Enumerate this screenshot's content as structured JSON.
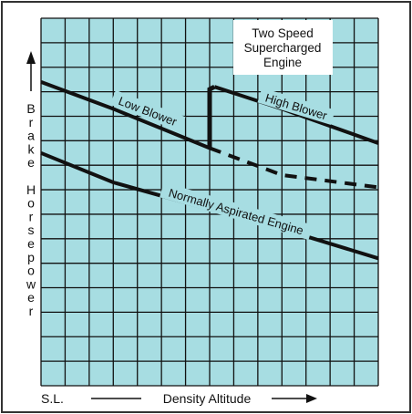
{
  "chart_data": {
    "type": "line",
    "title_lines": [
      "Two Speed",
      "Supercharged",
      "Engine"
    ],
    "xlabel": "Density Altitude",
    "x_origin_label": "S.L.",
    "ylabel_letters": [
      "B",
      "r",
      "a",
      "k",
      "e",
      "",
      "H",
      "o",
      "r",
      "s",
      "e",
      "p",
      "o",
      "w",
      "e",
      "r"
    ],
    "xlim": [
      0,
      14
    ],
    "ylim": [
      0,
      15
    ],
    "grid": true,
    "series": [
      {
        "name": "Low Blower",
        "style": "solid",
        "points": [
          [
            0,
            12.4
          ],
          [
            3,
            11.3
          ],
          [
            6,
            10.1
          ],
          [
            7,
            9.7
          ]
        ]
      },
      {
        "name": "",
        "style": "dashed",
        "points": [
          [
            7,
            9.7
          ],
          [
            10,
            8.6
          ],
          [
            14,
            8.1
          ]
        ]
      },
      {
        "name": "",
        "style": "step",
        "points": [
          [
            7,
            9.7
          ],
          [
            7,
            12.1
          ],
          [
            7.2,
            12.2
          ]
        ]
      },
      {
        "name": "High Blower",
        "style": "solid",
        "points": [
          [
            7.2,
            12.2
          ],
          [
            10,
            11.3
          ],
          [
            14,
            9.9
          ]
        ]
      },
      {
        "name": "Normally Aspirated Engine",
        "style": "solid",
        "points": [
          [
            0,
            9.5
          ],
          [
            3,
            8.3
          ],
          [
            7,
            7.2
          ],
          [
            10,
            6.4
          ],
          [
            14,
            5.2
          ]
        ]
      }
    ],
    "annotations": [
      "Low Blower",
      "High Blower",
      "Normally Aspirated Engine"
    ],
    "colors": {
      "plot_background": "#a7dde2",
      "grid": "#111111",
      "curve": "#111111",
      "frame": "#333333"
    }
  }
}
